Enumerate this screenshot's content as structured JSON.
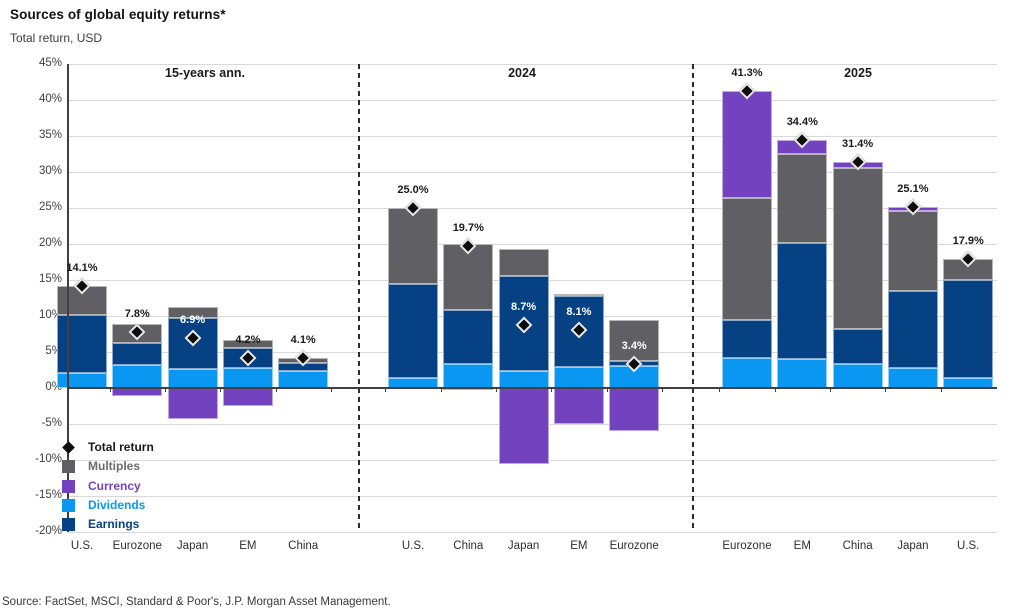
{
  "page": {
    "title": "Sources of global equity returns*",
    "subtitle": "Total return, USD",
    "source": "Source: FactSet, MSCI, Standard & Poor's, J.P. Morgan Asset Management."
  },
  "colors": {
    "earnings": "#064283",
    "dividends": "#0A97F2",
    "currency": "#7342BF",
    "multiples": "#606064",
    "total_marker": "#0d0d0d",
    "gridline": "#d9d9d9",
    "axis": "#3f3f3f"
  },
  "chart_data": {
    "type": "bar",
    "stacked": true,
    "title": "Sources of global equity returns*",
    "subtitle": "Total return, USD",
    "ylim": [
      -20,
      45
    ],
    "ytick_step": 5,
    "ytick_labels": [
      "45%",
      "40%",
      "35%",
      "30%",
      "25%",
      "20%",
      "15%",
      "10%",
      "5%",
      "0%",
      "-5%",
      "-10%",
      "-15%",
      "-20%"
    ],
    "grid": true,
    "legend_position": "bottom-left-inside",
    "series_order_bottom_to_top": [
      "dividends",
      "earnings",
      "multiples",
      "currency"
    ],
    "legend": [
      {
        "id": "total_return",
        "label": "Total return",
        "marker": "diamond",
        "color": "#0d0d0d",
        "text_color": "#1a1a1a"
      },
      {
        "id": "multiples",
        "label": "Multiples",
        "marker": "square",
        "color": "#606064",
        "text_color": "#6b6b6b"
      },
      {
        "id": "currency",
        "label": "Currency",
        "marker": "square",
        "color": "#7342BF",
        "text_color": "#7342BF"
      },
      {
        "id": "dividends",
        "label": "Dividends",
        "marker": "square",
        "color": "#0A97F2",
        "text_color": "#0A97F2"
      },
      {
        "id": "earnings",
        "label": "Earnings",
        "marker": "square",
        "color": "#064283",
        "text_color": "#064283"
      }
    ],
    "groups": [
      {
        "title": "15-years ann.",
        "bars": [
          {
            "category": "U.S.",
            "total": 14.1,
            "label": "14.1%",
            "label_style": "dark",
            "dividends": 2.1,
            "earnings": 8.1,
            "multiples": 3.9,
            "currency": 0.0
          },
          {
            "category": "Eurozone",
            "total": 7.8,
            "label": "7.8%",
            "label_style": "dark",
            "dividends": 3.2,
            "earnings": 3.0,
            "multiples": 2.7,
            "currency": -1.1
          },
          {
            "category": "Japan",
            "total": 6.9,
            "label": "6.9%",
            "label_style": "white",
            "dividends": 2.6,
            "earnings": 7.1,
            "multiples": 1.5,
            "currency": -4.3
          },
          {
            "category": "EM",
            "total": 4.2,
            "label": "4.2%",
            "label_style": "dark",
            "dividends": 2.8,
            "earnings": 2.8,
            "multiples": 1.1,
            "currency": -2.5
          },
          {
            "category": "China",
            "total": 4.1,
            "label": "4.1%",
            "label_style": "dark",
            "dividends": 2.4,
            "earnings": 1.1,
            "multiples": 0.6,
            "currency": 0.0
          }
        ]
      },
      {
        "title": "2024",
        "bars": [
          {
            "category": "U.S.",
            "total": 25.0,
            "label": "25.0%",
            "label_style": "dark",
            "dividends": 1.4,
            "earnings": 13.0,
            "multiples": 10.6,
            "currency": 0.0
          },
          {
            "category": "China",
            "total": 19.7,
            "label": "19.7%",
            "label_style": "dark",
            "dividends": 3.4,
            "earnings": 7.5,
            "multiples": 9.1,
            "currency": -0.3
          },
          {
            "category": "Japan",
            "total": 8.7,
            "label": "8.7%",
            "label_style": "white",
            "dividends": 2.4,
            "earnings": 13.1,
            "multiples": 3.8,
            "currency": -10.6
          },
          {
            "category": "EM",
            "total": 8.1,
            "label": "8.1%",
            "label_style": "white",
            "dividends": 2.9,
            "earnings": 9.9,
            "multiples": 0.3,
            "currency": -5.0
          },
          {
            "category": "Eurozone",
            "total": 3.4,
            "label": "3.4%",
            "label_style": "white",
            "dividends": 3.1,
            "earnings": 0.6,
            "multiples": 5.7,
            "currency": -6.0
          }
        ]
      },
      {
        "title": "2025",
        "bars": [
          {
            "category": "Eurozone",
            "total": 41.3,
            "label": "41.3%",
            "label_style": "dark",
            "dividends": 4.2,
            "earnings": 5.2,
            "multiples": 17.0,
            "currency": 14.9
          },
          {
            "category": "EM",
            "total": 34.4,
            "label": "34.4%",
            "label_style": "dark",
            "dividends": 4.0,
            "earnings": 16.2,
            "multiples": 12.3,
            "currency": 1.9
          },
          {
            "category": "China",
            "total": 31.4,
            "label": "31.4%",
            "label_style": "dark",
            "dividends": 3.3,
            "earnings": 4.9,
            "multiples": 22.3,
            "currency": 0.9
          },
          {
            "category": "Japan",
            "total": 25.1,
            "label": "25.1%",
            "label_style": "dark",
            "dividends": 2.8,
            "earnings": 10.7,
            "multiples": 11.1,
            "currency": 0.5
          },
          {
            "category": "U.S.",
            "total": 17.9,
            "label": "17.9%",
            "label_style": "dark",
            "dividends": 1.4,
            "earnings": 13.6,
            "multiples": 2.9,
            "currency": 0.0
          }
        ]
      }
    ]
  }
}
